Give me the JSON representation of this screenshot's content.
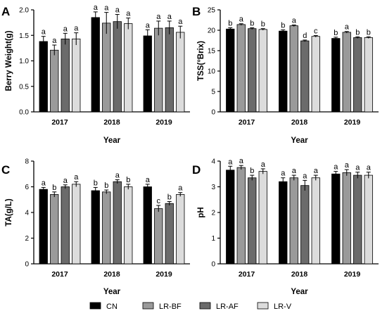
{
  "figure": {
    "legend": [
      "CN",
      "LR-BF",
      "LR-AF",
      "LR-V"
    ],
    "series_colors": [
      "#000000",
      "#9a9a9a",
      "#6b6b6b",
      "#dcdcdc"
    ]
  },
  "chart_data": [
    {
      "type": "bar",
      "panel": "A",
      "ylabel": "Berry Weight(g)",
      "xlabel": "Year",
      "categories": [
        "2017",
        "2018",
        "2019"
      ],
      "ylim": [
        0,
        2.0
      ],
      "yticks": [
        "0.0",
        "0.5",
        "1.0",
        "1.5",
        "2.0"
      ],
      "series": [
        {
          "name": "CN",
          "values": [
            1.38,
            1.85,
            1.49
          ],
          "errors": [
            0.1,
            0.11,
            0.12
          ],
          "letters": [
            "a",
            "a",
            "a"
          ]
        },
        {
          "name": "LR-BF",
          "values": [
            1.21,
            1.74,
            1.64
          ],
          "errors": [
            0.1,
            0.21,
            0.14
          ],
          "letters": [
            "a",
            "a",
            "a"
          ]
        },
        {
          "name": "LR-AF",
          "values": [
            1.43,
            1.77,
            1.65
          ],
          "errors": [
            0.11,
            0.14,
            0.13
          ],
          "letters": [
            "a",
            "a",
            "a"
          ]
        },
        {
          "name": "LR-V",
          "values": [
            1.43,
            1.73,
            1.56
          ],
          "errors": [
            0.12,
            0.11,
            0.12
          ],
          "letters": [
            "a",
            "a",
            "a"
          ]
        }
      ]
    },
    {
      "type": "bar",
      "panel": "B",
      "ylabel": "TSS(°Brix)",
      "xlabel": "Year",
      "categories": [
        "2017",
        "2018",
        "2019"
      ],
      "ylim": [
        0,
        25
      ],
      "yticks": [
        "0",
        "5",
        "10",
        "15",
        "20",
        "25"
      ],
      "series": [
        {
          "name": "CN",
          "values": [
            20.3,
            19.8,
            18.0
          ],
          "errors": [
            0.3,
            0.3,
            0.3
          ],
          "letters": [
            "b",
            "b",
            "b"
          ]
        },
        {
          "name": "LR-BF",
          "values": [
            21.4,
            21.1,
            19.5
          ],
          "errors": [
            0.2,
            0.2,
            0.2
          ],
          "letters": [
            "a",
            "a",
            "a"
          ]
        },
        {
          "name": "LR-AF",
          "values": [
            20.4,
            17.4,
            18.2
          ],
          "errors": [
            0.2,
            0.2,
            0.2
          ],
          "letters": [
            "b",
            "d",
            "b"
          ]
        },
        {
          "name": "LR-V",
          "values": [
            20.2,
            18.5,
            18.2
          ],
          "errors": [
            0.2,
            0.2,
            0.2
          ],
          "letters": [
            "b",
            "c",
            "b"
          ]
        }
      ]
    },
    {
      "type": "bar",
      "panel": "C",
      "ylabel": "TA(g/L)",
      "xlabel": "Year",
      "categories": [
        "2017",
        "2018",
        "2019"
      ],
      "ylim": [
        0,
        8
      ],
      "yticks": [
        "0",
        "2",
        "4",
        "6",
        "8"
      ],
      "series": [
        {
          "name": "CN",
          "values": [
            5.8,
            5.7,
            6.0
          ],
          "errors": [
            0.15,
            0.25,
            0.2
          ],
          "letters": [
            "a",
            "b",
            "a"
          ]
        },
        {
          "name": "LR-BF",
          "values": [
            5.4,
            5.6,
            4.3
          ],
          "errors": [
            0.2,
            0.15,
            0.25
          ],
          "letters": [
            "b",
            "b",
            "c"
          ]
        },
        {
          "name": "LR-AF",
          "values": [
            6.0,
            6.4,
            4.7
          ],
          "errors": [
            0.15,
            0.15,
            0.15
          ],
          "letters": [
            "a",
            "a",
            "b"
          ]
        },
        {
          "name": "LR-V",
          "values": [
            6.2,
            6.0,
            5.4
          ],
          "errors": [
            0.2,
            0.2,
            0.15
          ],
          "letters": [
            "a",
            "b",
            "a"
          ]
        }
      ]
    },
    {
      "type": "bar",
      "panel": "D",
      "ylabel": "pH",
      "xlabel": "Year",
      "categories": [
        "2017",
        "2018",
        "2019"
      ],
      "ylim": [
        0,
        4
      ],
      "yticks": [
        "0",
        "1",
        "2",
        "3",
        "4"
      ],
      "series": [
        {
          "name": "CN",
          "values": [
            3.65,
            3.2,
            3.5
          ],
          "errors": [
            0.15,
            0.15,
            0.1
          ],
          "letters": [
            "a",
            "a",
            "a"
          ]
        },
        {
          "name": "LR-BF",
          "values": [
            3.75,
            3.35,
            3.55
          ],
          "errors": [
            0.08,
            0.1,
            0.12
          ],
          "letters": [
            "a",
            "a",
            "a"
          ]
        },
        {
          "name": "LR-AF",
          "values": [
            3.35,
            3.05,
            3.45
          ],
          "errors": [
            0.1,
            0.2,
            0.12
          ],
          "letters": [
            "b",
            "a",
            "a"
          ]
        },
        {
          "name": "LR-V",
          "values": [
            3.6,
            3.35,
            3.45
          ],
          "errors": [
            0.1,
            0.1,
            0.12
          ],
          "letters": [
            "a",
            "a",
            "a"
          ]
        }
      ]
    }
  ]
}
